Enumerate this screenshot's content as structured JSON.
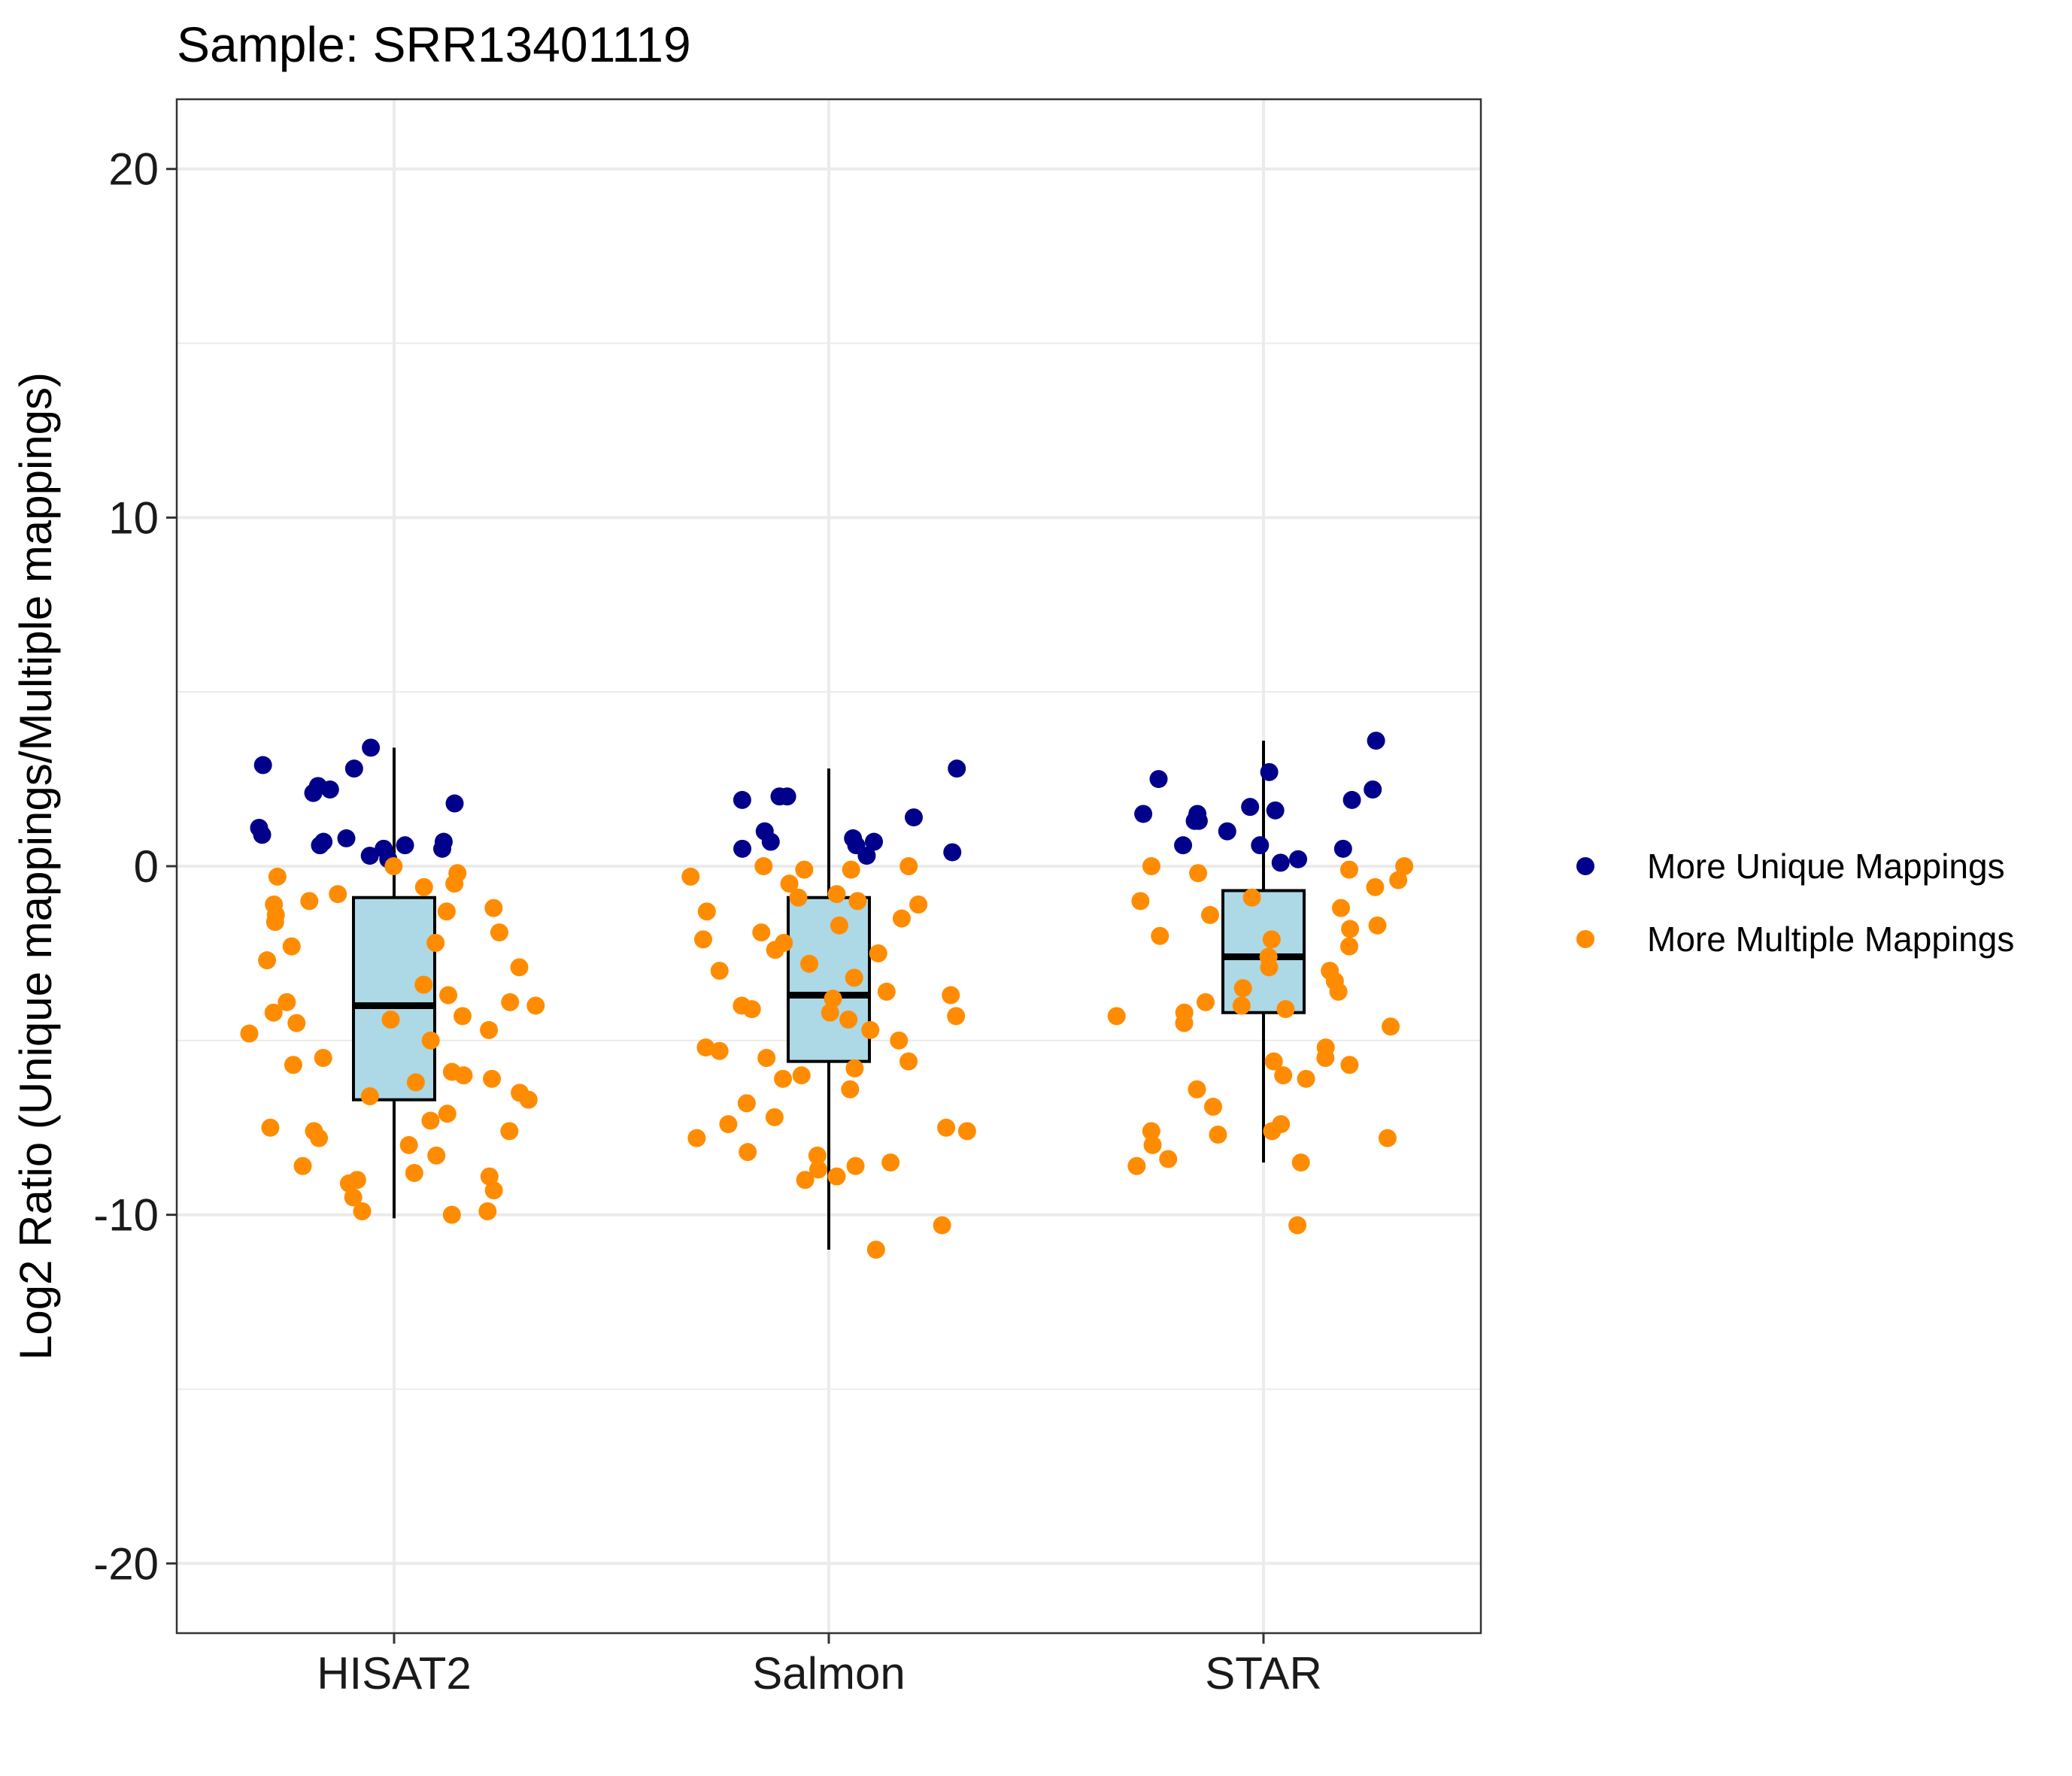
{
  "chart_data": {
    "type": "scatter",
    "title": "Sample: SRR13401119",
    "xlabel": "",
    "ylabel": "Log2 Ratio (Unique mappings/Multiple mappings)",
    "ylim": [
      -22,
      22
    ],
    "yticks": [
      -20,
      -10,
      0,
      10,
      20
    ],
    "categories": [
      "HISAT2",
      "Salmon",
      "STAR"
    ],
    "grid": true,
    "legend_position": "right",
    "colors": {
      "unique": "#00008b",
      "multiple": "#ff8c00",
      "box_fill": "#add8e6",
      "box_stroke": "#000000",
      "grid": "#ebebeb"
    },
    "legend": [
      {
        "key": "unique",
        "label": "More Unique Mappings"
      },
      {
        "key": "multiple",
        "label": "More Multiple Mappings"
      }
    ],
    "boxplots": [
      {
        "category": "HISAT2",
        "q1": -6.7,
        "median": -4.0,
        "q3": -0.9,
        "whisker_low": -10.1,
        "whisker_high": 3.4
      },
      {
        "category": "Salmon",
        "q1": -5.6,
        "median": -3.7,
        "q3": -0.9,
        "whisker_low": -11.0,
        "whisker_high": 2.8
      },
      {
        "category": "STAR",
        "q1": -4.2,
        "median": -2.6,
        "q3": -0.7,
        "whisker_low": -8.5,
        "whisker_high": 3.6
      }
    ],
    "series": [
      {
        "key": "unique",
        "points": [
          {
            "category": "HISAT2",
            "values": [
              3.4,
              2.9,
              2.8,
              2.3,
              2.2,
              2.1,
              1.8,
              1.1,
              0.9,
              0.8,
              0.7,
              0.6,
              0.5,
              0.5,
              0.7,
              0.6,
              0.3,
              0.2
            ]
          },
          {
            "category": "Salmon",
            "values": [
              2.8,
              2.0,
              2.0,
              1.9,
              1.4,
              1.0,
              0.8,
              0.7,
              0.7,
              0.6,
              0.5,
              0.4,
              0.3
            ]
          },
          {
            "category": "STAR",
            "values": [
              3.6,
              2.7,
              2.5,
              2.2,
              1.9,
              1.7,
              1.6,
              1.5,
              1.5,
              1.3,
              1.3,
              1.0,
              0.6,
              0.6,
              0.5,
              0.2,
              0.1
            ]
          }
        ]
      },
      {
        "key": "multiple",
        "points": [
          {
            "category": "HISAT2",
            "values": [
              -0.2,
              -0.3,
              -0.5,
              -0.6,
              -0.8,
              -1.1,
              -1.2,
              -1.3,
              -1.6,
              -1.9,
              -2.2,
              -2.3,
              -2.7,
              -3.4,
              -3.7,
              -3.9,
              -4.0,
              -4.2,
              -4.3,
              -4.5,
              -4.7,
              -4.8,
              -5.0,
              -5.5,
              -5.7,
              -6.0,
              -6.1,
              -6.2,
              -6.5,
              -6.7,
              -7.1,
              -7.3,
              -7.5,
              -7.6,
              -7.8,
              -8.0,
              -8.3,
              -8.6,
              -8.9,
              -9.1,
              -9.3,
              -9.5,
              -9.9,
              -10.0,
              -0.0,
              -1.0,
              -3.9,
              -5.9,
              -7.6,
              -8.8,
              -9.0,
              -9.9,
              -6.6,
              -2.9,
              -4.4,
              -1.4
            ]
          },
          {
            "category": "Salmon",
            "values": [
              -0.0,
              -0.1,
              -0.3,
              -0.5,
              -0.8,
              -1.0,
              -1.3,
              -1.5,
              -1.9,
              -2.2,
              -2.5,
              -2.8,
              -3.2,
              -3.6,
              -3.8,
              -4.0,
              -4.1,
              -4.3,
              -4.7,
              -5.0,
              -5.2,
              -5.5,
              -5.8,
              -6.0,
              -6.4,
              -6.8,
              -7.2,
              -7.5,
              -7.8,
              -8.2,
              -8.5,
              -8.7,
              -8.9,
              -9.0,
              -10.3,
              -11.0,
              -0.1,
              -1.1,
              -2.1,
              -3.0,
              -4.4,
              -5.3,
              -7.6,
              -8.6,
              -0.0,
              -0.9,
              -2.4,
              -3.7,
              -5.6,
              -7.4,
              -8.3,
              -1.7,
              -4.2,
              -6.1
            ]
          },
          {
            "category": "STAR",
            "values": [
              0.0,
              -0.1,
              -0.4,
              -0.6,
              -0.9,
              -1.2,
              -1.4,
              -1.7,
              -2.0,
              -2.3,
              -2.6,
              -2.9,
              -3.3,
              -3.6,
              -3.9,
              -4.1,
              -4.3,
              -4.6,
              -5.2,
              -5.5,
              -5.7,
              -6.0,
              -6.4,
              -6.9,
              -7.4,
              -7.6,
              -7.8,
              -8.0,
              -8.5,
              -8.6,
              -10.3,
              -0.2,
              -1.0,
              -2.1,
              -3.5,
              -4.0,
              -4.5,
              -5.6,
              -7.6,
              -8.4,
              -0.0,
              -1.8,
              -3.0,
              -4.2,
              -6.1,
              -7.7
            ]
          }
        ]
      }
    ]
  }
}
